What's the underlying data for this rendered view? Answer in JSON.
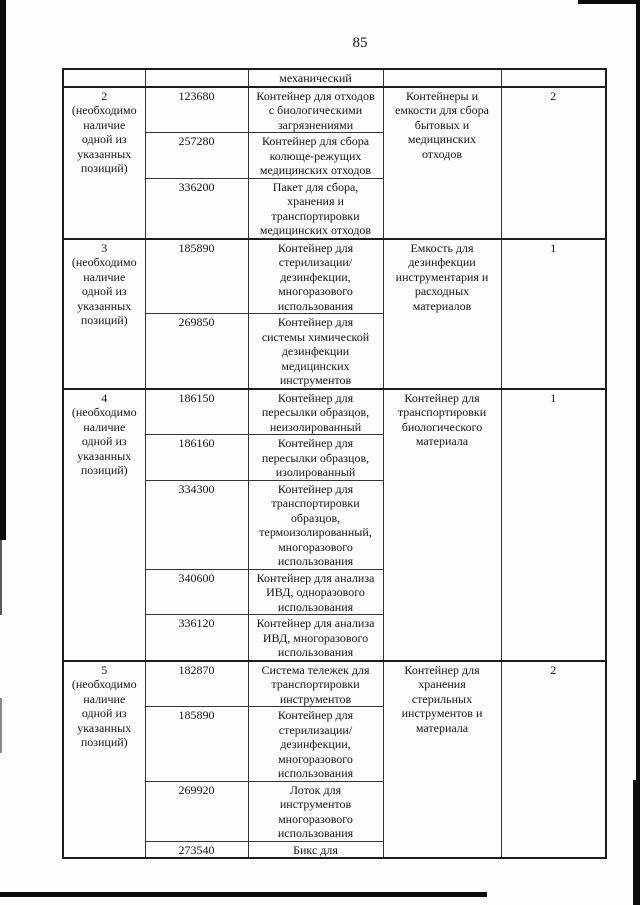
{
  "page_number": "85",
  "table": {
    "rows": [
      {
        "position": "",
        "items": [
          {
            "code": "",
            "name": "механический"
          }
        ],
        "group": "",
        "qty": ""
      },
      {
        "position": "2\n(необходимо\nналичие\nодной из\nуказанных\nпозиций)",
        "items": [
          {
            "code": "123680",
            "name": "Контейнер для отходов\nс биологическими\nзагрязнениями"
          },
          {
            "code": "257280",
            "name": "Контейнер для сбора\nколюще-режущих\nмедицинских отходов"
          },
          {
            "code": "336200",
            "name": "Пакет для сбора,\nхранения и\nтранспортировки\nмедицинских отходов"
          }
        ],
        "group": "Контейнеры и\nемкости для сбора\nбытовых и\nмедицинских\nотходов",
        "qty": "2"
      },
      {
        "position": "3\n(необходимо\nналичие\nодной из\nуказанных\nпозиций)",
        "items": [
          {
            "code": "185890",
            "name": "Контейнер для\nстерилизации/\nдезинфекции,\nмногоразового\nиспользования"
          },
          {
            "code": "269850",
            "name": "Контейнер для\nсистемы химической\nдезинфекции\nмедицинских\nинструментов"
          }
        ],
        "group": "Емкость для\nдезинфекции\nинструментария и\nрасходных\nматериалов",
        "qty": "1"
      },
      {
        "position": "4\n(необходимо\nналичие\nодной из\nуказанных\nпозиций)",
        "items": [
          {
            "code": "186150",
            "name": "Контейнер для\nпересылки образцов,\nнеизолированный"
          },
          {
            "code": "186160",
            "name": "Контейнер для\nпересылки образцов,\nизолированный"
          },
          {
            "code": "334300",
            "name": "Контейнер для\nтранспортировки\nобразцов,\nтермоизолированный,\nмногоразового\nиспользования"
          },
          {
            "code": "340600",
            "name": "Контейнер для анализа\nИВД, одноразового\nиспользования"
          },
          {
            "code": "336120",
            "name": "Контейнер для анализа\nИВД, многоразового\nиспользования"
          }
        ],
        "group": "Контейнер для\nтранспортировки\nбиологического\nматериала",
        "qty": "1"
      },
      {
        "position": "5\n(необходимо\nналичие\nодной из\nуказанных\nпозиций)",
        "items": [
          {
            "code": "182870",
            "name": "Система тележек для\nтранспортировки\nинструментов"
          },
          {
            "code": "185890",
            "name": "Контейнер для\nстерилизации/\nдезинфекции,\nмногоразового\nиспользования"
          },
          {
            "code": "269920",
            "name": "Лоток для\nинструментов\nмногоразового\nиспользования"
          },
          {
            "code": "273540",
            "name": "Бикс для"
          }
        ],
        "group": "Контейнер для\nхранения\nстерильных\nинструментов и\nматериала",
        "qty": "2"
      }
    ]
  }
}
